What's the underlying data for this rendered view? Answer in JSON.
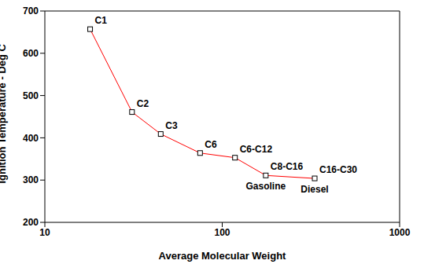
{
  "chart_data": {
    "type": "line",
    "x_label": "Average Molecular Weight",
    "y_label": "Ignition Temperature - Deg C",
    "x": [
      18,
      31,
      45,
      75,
      118,
      176,
      332
    ],
    "values": [
      657,
      461,
      409,
      364,
      353,
      311,
      304
    ],
    "point_labels": [
      "C1",
      "C2",
      "C3",
      "C6",
      "C6-C12",
      "C8-C16",
      "C16-C30"
    ],
    "point_sublabels": [
      null,
      null,
      null,
      null,
      null,
      "Gasoline",
      "Diesel"
    ],
    "color": "#ff0000",
    "marker": "square",
    "log": "x",
    "xlim": [
      10,
      1000
    ],
    "xticks": [
      10,
      100,
      1000
    ],
    "ylim": [
      200,
      700
    ],
    "yticks": [
      200,
      300,
      400,
      500,
      600,
      700
    ],
    "grid": false
  }
}
